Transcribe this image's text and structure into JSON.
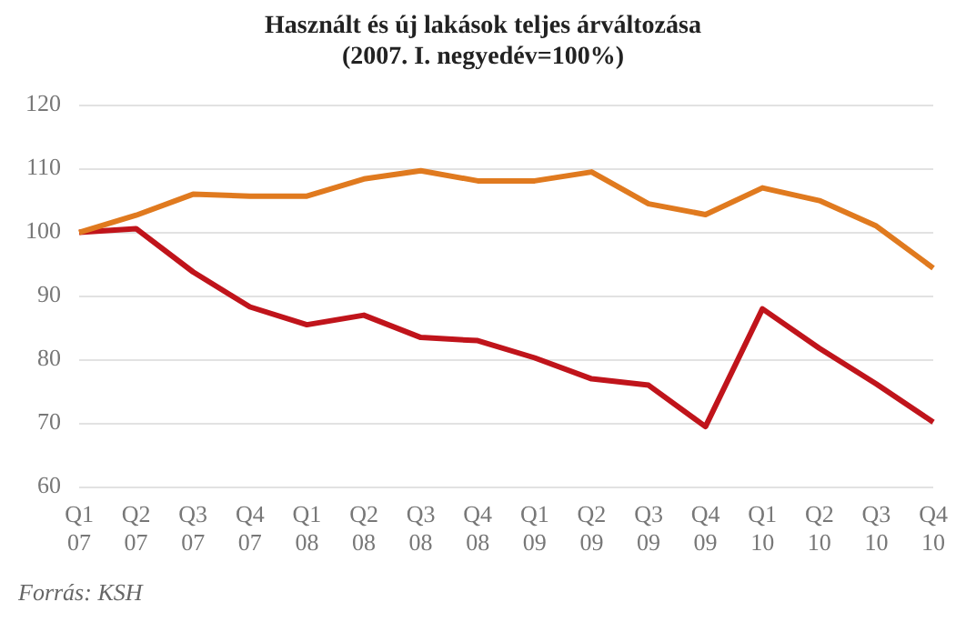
{
  "chart_data": {
    "type": "line",
    "title": "Használt és új lakások teljes árváltozása",
    "subtitle": "(2007. I. negyedév=100%)",
    "categories": [
      "Q1 07",
      "Q2 07",
      "Q3 07",
      "Q4 07",
      "Q1 08",
      "Q2 08",
      "Q3 08",
      "Q4 08",
      "Q1 09",
      "Q2 09",
      "Q3 09",
      "Q4 09",
      "Q1 10",
      "Q2 10",
      "Q3 10",
      "Q4 10"
    ],
    "series": [
      {
        "color": "#e07a1f",
        "values": [
          100,
          102.7,
          106,
          105.7,
          105.7,
          108.4,
          109.7,
          108.1,
          108.1,
          109.5,
          104.5,
          102.8,
          107,
          105,
          101,
          94.4
        ]
      },
      {
        "color": "#c0141b",
        "values": [
          100,
          100.6,
          93.8,
          88.3,
          85.5,
          87,
          83.5,
          83,
          80.3,
          77,
          76,
          69.5,
          88,
          81.8,
          76.2,
          70.2
        ]
      }
    ],
    "ylim": [
      60,
      120
    ],
    "yticks": [
      60,
      70,
      80,
      90,
      100,
      110,
      120
    ],
    "grid": "y",
    "legend": false,
    "marker": "none",
    "line_style": "solid",
    "annotations": [
      "Forrás: KSH"
    ]
  }
}
